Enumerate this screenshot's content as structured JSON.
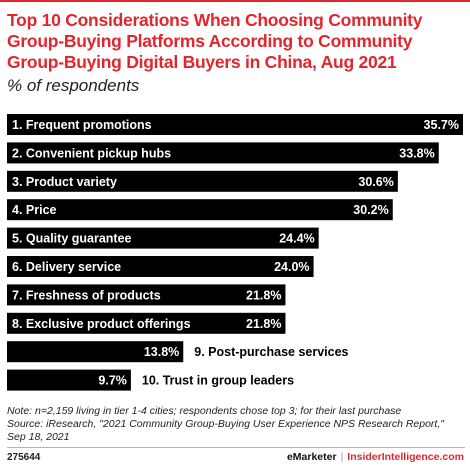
{
  "title": "Top 10 Considerations When Choosing Community Group-Buying Platforms According to Community Group-Buying Digital Buyers in China, Aug 2021",
  "subtitle": "% of respondents",
  "chart_data": {
    "type": "bar",
    "orientation": "horizontal",
    "categories": [
      "1. Frequent promotions",
      "2. Convenient pickup hubs",
      "3. Product variety",
      "4. Price",
      "5. Quality guarantee",
      "6. Delivery service",
      "7. Freshness of products",
      "8. Exclusive product offerings",
      "9. Post-purchase services",
      "10. Trust in group leaders"
    ],
    "values": [
      35.7,
      33.8,
      30.6,
      30.2,
      24.4,
      24.0,
      21.8,
      21.8,
      13.8,
      9.7
    ],
    "value_labels": [
      "35.7%",
      "33.8%",
      "30.6%",
      "30.2%",
      "24.4%",
      "24.0%",
      "21.8%",
      "21.8%",
      "13.8%",
      "9.7%"
    ],
    "xlim": [
      0,
      35.7
    ],
    "bar_color": "#000000",
    "grid": false
  },
  "note": "Note: n=2,159 living in tier 1-4 cities; respondents chose top 3; for their last purchase",
  "source": "Source: iResearch, \"2021 Community Group-Buying User Experience NPS Research Report,\" Sep 18, 2021",
  "footer": {
    "chart_id": "275644",
    "brand_left": "eMarketer",
    "separator": "|",
    "brand_right": "InsiderIntelligence.com"
  },
  "colors": {
    "accent": "#e2262e",
    "bar": "#000000",
    "text": "#222222"
  }
}
